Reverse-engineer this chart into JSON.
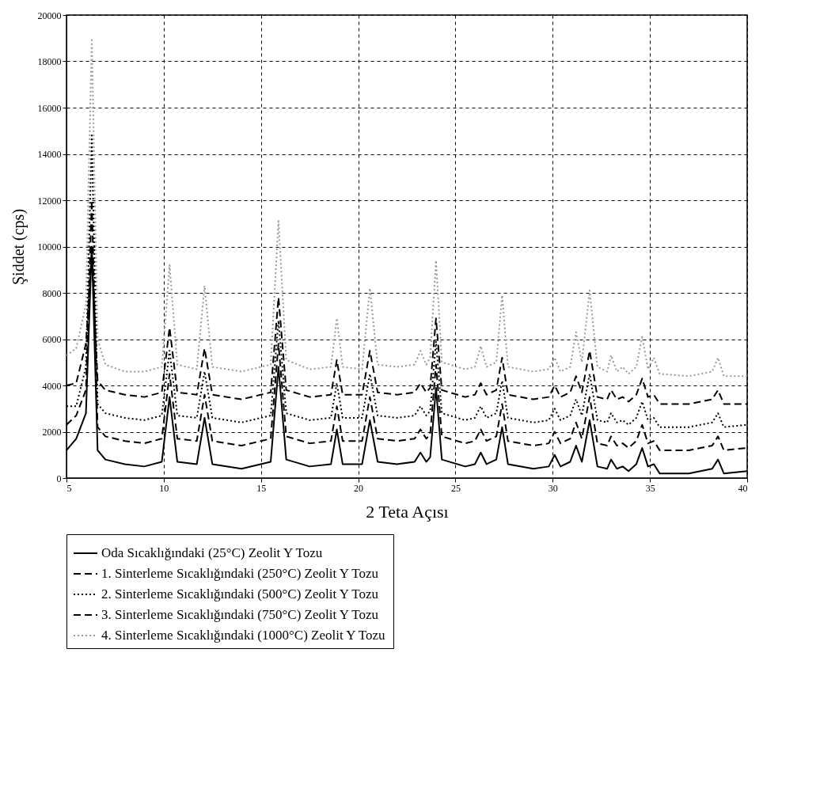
{
  "chart_data": {
    "type": "line",
    "xlabel": "2 Teta Açısı",
    "ylabel": "Şiddet (cps)",
    "x": [
      5,
      5.5,
      6.0,
      6.3,
      6.6,
      7,
      8,
      9,
      9.9,
      10.3,
      10.7,
      11.7,
      12.1,
      12.5,
      14,
      15.5,
      15.9,
      16.3,
      17.5,
      18.6,
      18.9,
      19.2,
      20.2,
      20.6,
      21.0,
      22,
      22.9,
      23.2,
      23.5,
      23.7,
      24.0,
      24.3,
      25.5,
      26.0,
      26.3,
      26.6,
      27.1,
      27.4,
      27.7,
      29,
      29.8,
      30.1,
      30.4,
      30.9,
      31.2,
      31.5,
      31.9,
      32.3,
      32.8,
      33.0,
      33.3,
      33.6,
      33.9,
      34.3,
      34.6,
      34.9,
      35.2,
      35.5,
      37,
      38.2,
      38.5,
      38.8,
      40
    ],
    "series": [
      {
        "name": "Oda Sıcaklığındaki (25°C) Zeolit Y Tozu",
        "color": "#000000",
        "line_style": "solid",
        "values": [
          1200,
          1700,
          2800,
          10000,
          1200,
          800,
          600,
          500,
          700,
          3500,
          700,
          600,
          2600,
          600,
          400,
          700,
          4800,
          800,
          500,
          600,
          2100,
          600,
          600,
          2500,
          700,
          600,
          700,
          1100,
          700,
          900,
          3900,
          800,
          500,
          600,
          1100,
          600,
          800,
          2200,
          600,
          400,
          500,
          1000,
          500,
          700,
          1400,
          700,
          2500,
          500,
          400,
          800,
          400,
          500,
          300,
          600,
          1300,
          500,
          600,
          200,
          200,
          400,
          800,
          200,
          300
        ]
      },
      {
        "name": "1. Sinterleme Sıcaklığındaki (250°C) Zeolit Y Tozu",
        "color": "#000000",
        "line_style": "dashed",
        "values": [
          2300,
          2700,
          3800,
          12000,
          2200,
          1800,
          1600,
          1500,
          1700,
          4500,
          1700,
          1600,
          3600,
          1600,
          1400,
          1700,
          5800,
          1800,
          1500,
          1600,
          3100,
          1600,
          1600,
          3500,
          1700,
          1600,
          1700,
          2100,
          1700,
          1900,
          4900,
          1800,
          1500,
          1600,
          2100,
          1600,
          1800,
          3200,
          1600,
          1400,
          1500,
          2000,
          1500,
          1700,
          2400,
          1700,
          3500,
          1500,
          1400,
          1800,
          1400,
          1500,
          1300,
          1600,
          2300,
          1500,
          1600,
          1200,
          1200,
          1400,
          1800,
          1200,
          1300
        ]
      },
      {
        "name": "2. Sinterleme Sıcaklığındaki (500°C) Zeolit Y Tozu",
        "color": "#000000",
        "line_style": "dotted",
        "values": [
          3100,
          3100,
          4800,
          14800,
          3200,
          2800,
          2600,
          2500,
          2700,
          5500,
          2700,
          2600,
          4600,
          2600,
          2400,
          2700,
          6800,
          2800,
          2500,
          2600,
          4100,
          2600,
          2600,
          4500,
          2700,
          2600,
          2700,
          3100,
          2700,
          2900,
          5900,
          2800,
          2500,
          2600,
          3100,
          2600,
          2800,
          4200,
          2600,
          2400,
          2500,
          3000,
          2500,
          2700,
          3400,
          2700,
          4500,
          2500,
          2400,
          2800,
          2400,
          2500,
          2300,
          2600,
          3300,
          2500,
          2600,
          2200,
          2200,
          2400,
          2800,
          2200,
          2300
        ]
      },
      {
        "name": "3. Sinterleme Sıcaklığındaki (750°C) Zeolit Y Tozu",
        "color": "#000000",
        "line_style": "dashed",
        "values": [
          4000,
          4100,
          5800,
          9800,
          4200,
          3800,
          3600,
          3500,
          3700,
          6500,
          3700,
          3600,
          5600,
          3600,
          3400,
          3700,
          7800,
          3800,
          3500,
          3600,
          5100,
          3600,
          3600,
          5500,
          3700,
          3600,
          3700,
          4100,
          3700,
          3900,
          6900,
          3800,
          3500,
          3600,
          4100,
          3600,
          3800,
          5200,
          3600,
          3400,
          3500,
          4000,
          3500,
          3700,
          4400,
          3700,
          5500,
          3500,
          3400,
          3800,
          3400,
          3500,
          3300,
          3600,
          4300,
          3500,
          3600,
          3200,
          3200,
          3400,
          3800,
          3200,
          3200
        ]
      },
      {
        "name": "4. Sinterleme Sıcaklığındaki (1000°C) Zeolit Y Tozu",
        "color": "#999999",
        "line_style": "dotted",
        "values": [
          5300,
          5600,
          7500,
          19000,
          6000,
          4900,
          4600,
          4600,
          4800,
          9200,
          4900,
          4700,
          8300,
          4800,
          4600,
          4900,
          11100,
          5100,
          4700,
          4800,
          6900,
          4800,
          4700,
          8200,
          4900,
          4800,
          4900,
          5500,
          4900,
          5200,
          9400,
          5000,
          4700,
          4800,
          5700,
          4800,
          5000,
          7900,
          4800,
          4600,
          4700,
          5200,
          4600,
          4800,
          6300,
          5000,
          8100,
          4800,
          4600,
          5300,
          4600,
          4800,
          4500,
          4800,
          6100,
          4700,
          5200,
          4500,
          4400,
          4600,
          5200,
          4400,
          4400
        ]
      }
    ],
    "xlim": [
      5,
      40
    ],
    "xticks": [
      5,
      10,
      15,
      20,
      25,
      30,
      35,
      40
    ],
    "ylim": [
      0,
      20000
    ],
    "yticks": [
      0,
      2000,
      4000,
      6000,
      8000,
      10000,
      12000,
      14000,
      16000,
      18000,
      20000
    ],
    "grid": true,
    "legend": "bottom"
  }
}
